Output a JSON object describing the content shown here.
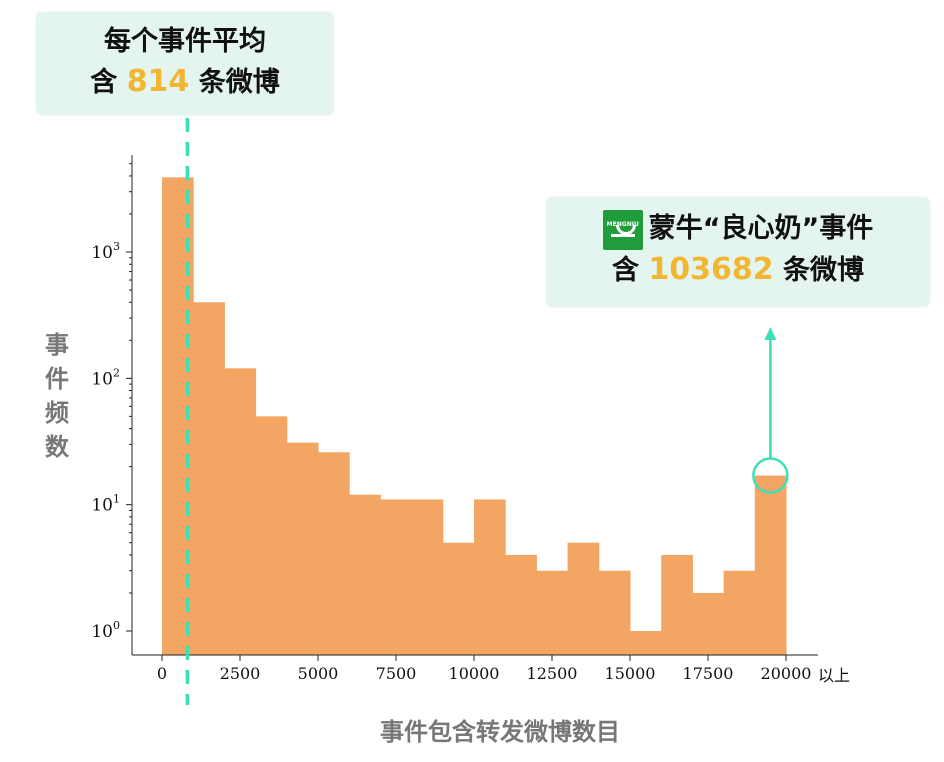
{
  "chart_data": {
    "type": "bar",
    "title": "",
    "xlabel": "事件包含转发微博数目",
    "ylabel": "事件频数",
    "yscale": "log",
    "xlim": [
      0,
      20000
    ],
    "ylim": [
      0.8,
      8000
    ],
    "bin_width": 1000,
    "bins_start": [
      0,
      1000,
      2000,
      3000,
      4000,
      5000,
      6000,
      7000,
      8000,
      9000,
      10000,
      11000,
      12000,
      13000,
      14000,
      15000,
      16000,
      17000,
      18000,
      19000
    ],
    "values": [
      3900,
      400,
      120,
      50,
      31,
      26,
      12,
      11,
      11,
      5,
      11,
      4,
      3,
      5,
      3,
      1,
      4,
      2,
      3,
      17
    ],
    "x_ticks": [
      "0",
      "2500",
      "5000",
      "7500",
      "10000",
      "12500",
      "15000",
      "17500",
      "20000"
    ],
    "x_tick_suffix": "以上",
    "y_ticks": [
      {
        "value": 1,
        "base": "10",
        "exp": "0"
      },
      {
        "value": 10,
        "base": "10",
        "exp": "1"
      },
      {
        "value": 100,
        "base": "10",
        "exp": "2"
      },
      {
        "value": 1000,
        "base": "10",
        "exp": "3"
      }
    ],
    "mean_line_x": 814,
    "bar_color": "#f3a664",
    "mean_line_color": "#3de0b4",
    "highlight_color": "#3de0b4",
    "grid": false
  },
  "callouts": {
    "mean": {
      "line1": "每个事件平均",
      "prefix": "含 ",
      "number": "814",
      "suffix": " 条微博"
    },
    "event": {
      "logo_text": "MENGNIU",
      "brand": "蒙牛",
      "line1": "“良心奶”事件",
      "prefix": "含 ",
      "number": "103682",
      "suffix": " 条微博"
    }
  },
  "colors": {
    "accent_number": "#f2b632",
    "callout_bg": "#e4f5ef"
  }
}
